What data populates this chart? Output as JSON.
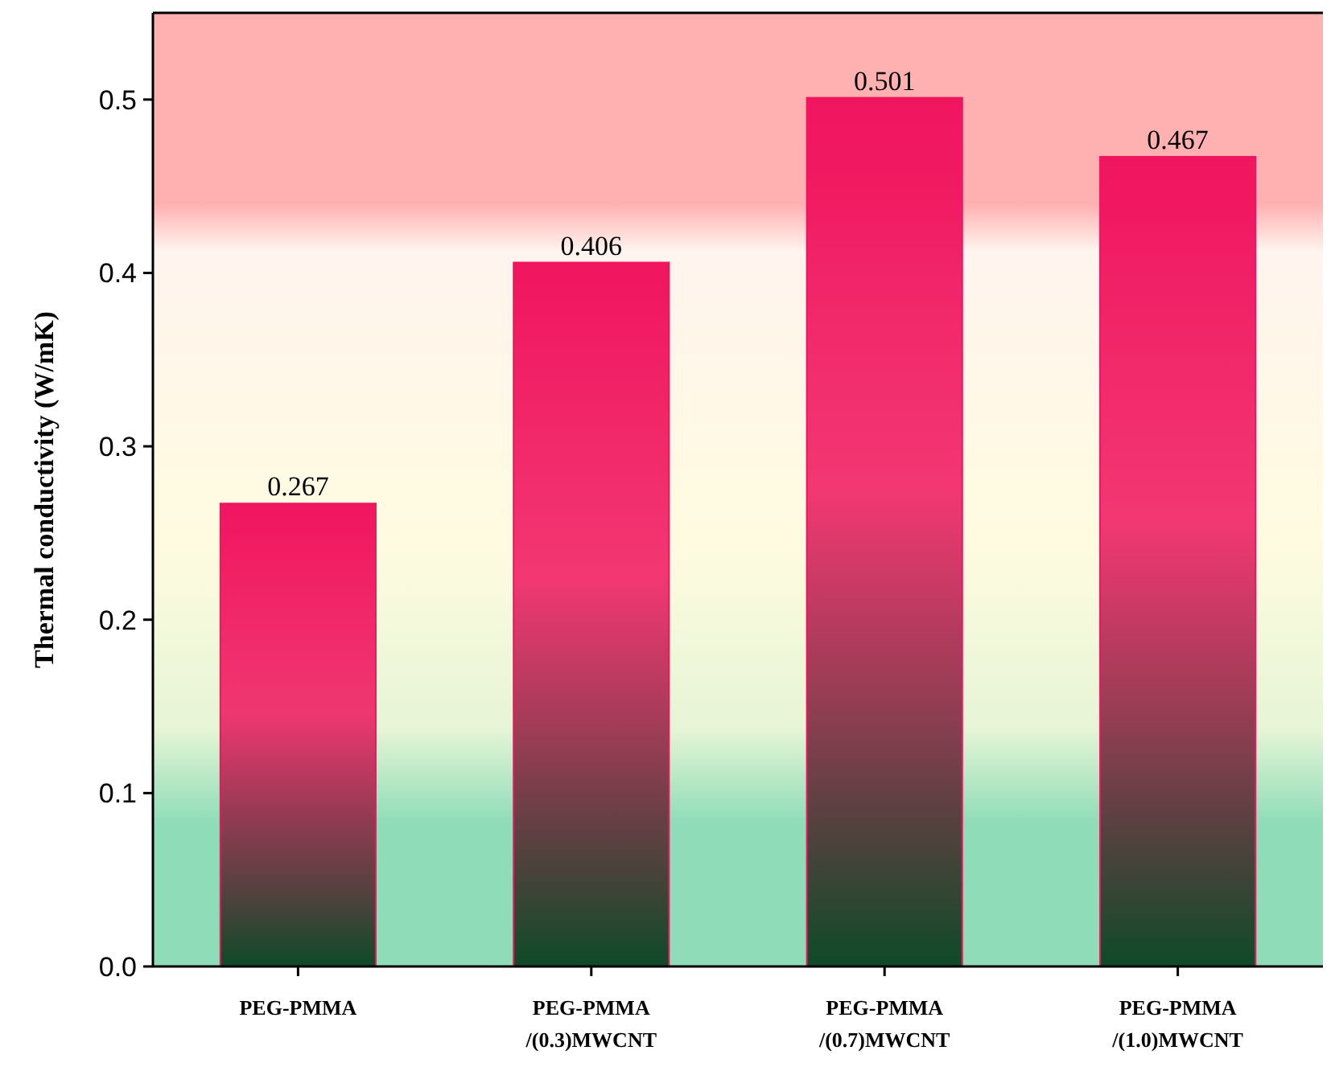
{
  "chart_data": {
    "type": "bar",
    "ylabel": "Thermal conductivity (W/mK)",
    "categories": [
      "PEG-PMMA",
      "PEG-PMMA\n/(0.3)MWCNT",
      "PEG-PMMA\n/(0.7)MWCNT",
      "PEG-PMMA\n/(1.0)MWCNT"
    ],
    "values": [
      0.267,
      0.406,
      0.501,
      0.467
    ],
    "color": "#f0155f",
    "ylim": [
      0,
      0.55
    ],
    "yticks": [
      {
        "value": 0,
        "label": "0.0"
      },
      {
        "value": 0.1,
        "label": "0.1"
      },
      {
        "value": 0.2,
        "label": "0.2"
      },
      {
        "value": 0.3,
        "label": "0.3"
      },
      {
        "value": 0.4,
        "label": "0.4"
      },
      {
        "value": 0.5,
        "label": "0.5"
      }
    ],
    "data_labels": true
  }
}
